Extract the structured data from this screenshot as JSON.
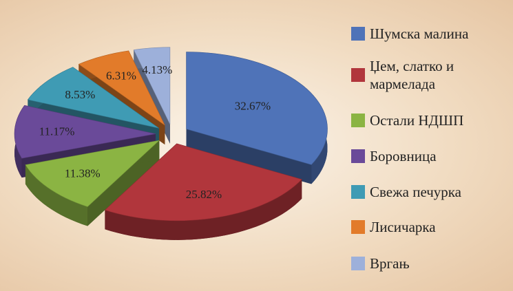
{
  "chart_data": {
    "type": "pie",
    "categories": [
      "Шумска малина",
      "Џем, слатко и мармелада",
      "Остали НДШП",
      "Боровница",
      "Свежа печурка",
      "Лисичарка",
      "Вргањ"
    ],
    "values": [
      32.67,
      25.82,
      11.38,
      11.17,
      8.53,
      6.31,
      4.13
    ],
    "value_labels": [
      "32.67%",
      "25.82%",
      "11.38%",
      "11.17%",
      "8.53%",
      "6.31%",
      "4.13%"
    ],
    "colors": [
      "#4f73b8",
      "#b1363c",
      "#8bb443",
      "#6a4a99",
      "#3f9bb4",
      "#e27b2a",
      "#9db0da"
    ]
  }
}
